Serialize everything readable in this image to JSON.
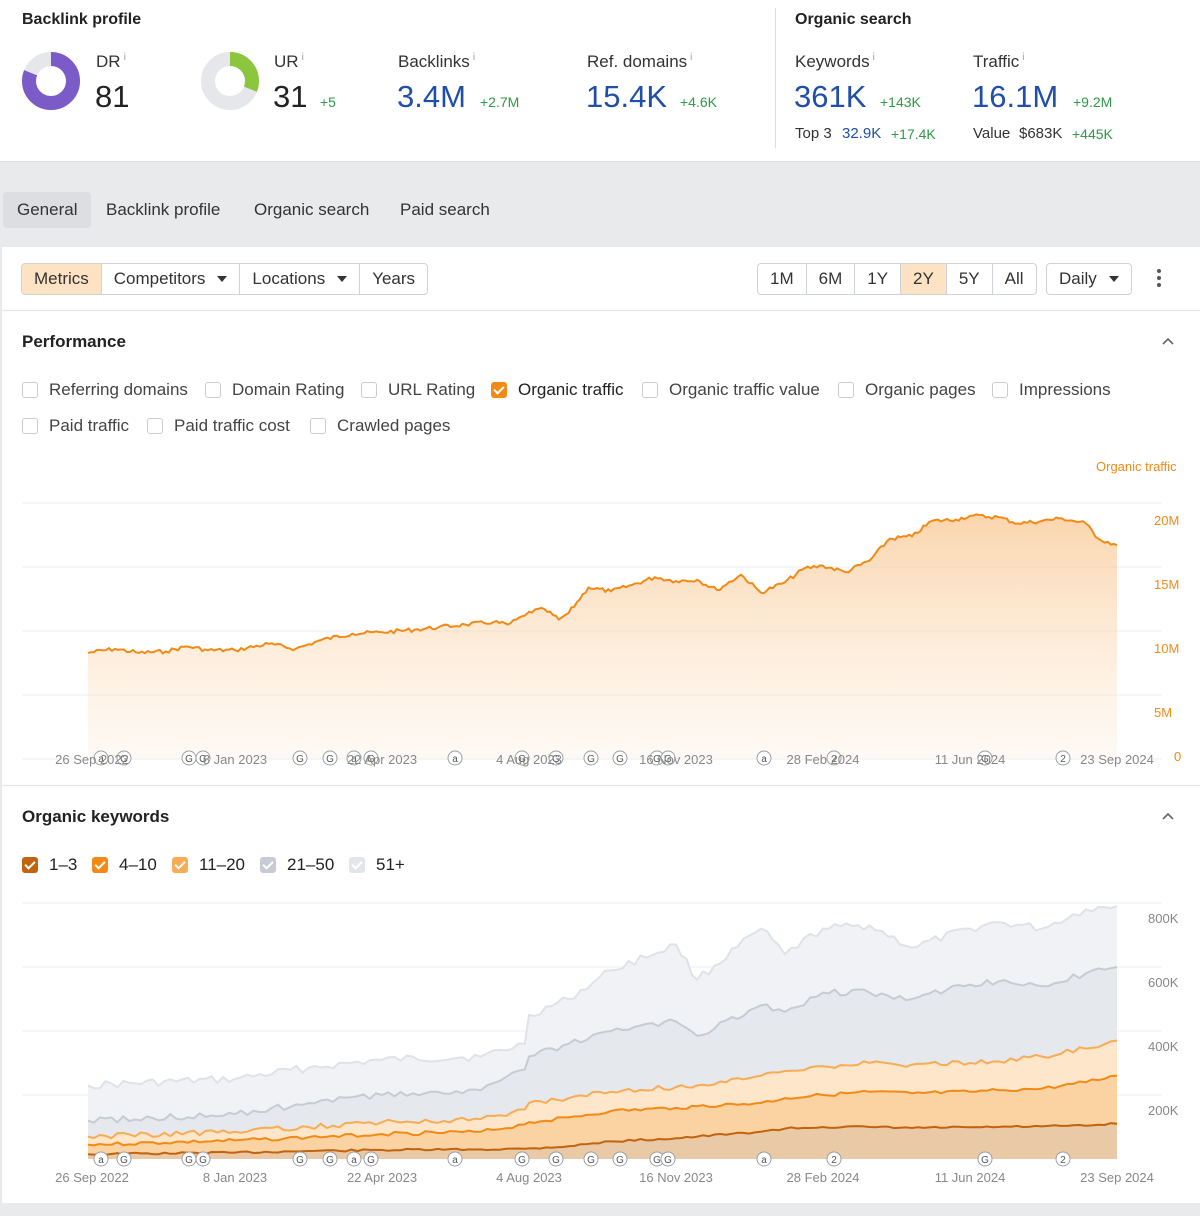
{
  "overview": {
    "backlink_title": "Backlink profile",
    "organic_title": "Organic search",
    "dr": {
      "label": "DR",
      "info": "i",
      "value": "81",
      "ring_fraction": 0.81,
      "color": "#7a5bc8"
    },
    "ur": {
      "label": "UR",
      "info": "i",
      "value": "31",
      "delta": "+5",
      "ring_fraction": 0.31,
      "color": "#8cc63f"
    },
    "backlinks": {
      "label": "Backlinks",
      "info": "i",
      "value": "3.4M",
      "delta": "+2.7M"
    },
    "ref_domains": {
      "label": "Ref. domains",
      "info": "i",
      "value": "15.4K",
      "delta": "+4.6K"
    },
    "keywords": {
      "label": "Keywords",
      "info": "i",
      "value": "361K",
      "delta": "+143K",
      "top3_label": "Top 3",
      "top3_value": "32.9K",
      "top3_delta": "+17.4K"
    },
    "traffic": {
      "label": "Traffic",
      "info": "i",
      "value": "16.1M",
      "delta": "+9.2M",
      "value_label": "Value",
      "value_value": "$683K",
      "value_delta": "+445K"
    }
  },
  "tabs": [
    {
      "label": "General",
      "active": true
    },
    {
      "label": "Backlink profile",
      "active": false
    },
    {
      "label": "Organic search",
      "active": false
    },
    {
      "label": "Paid search",
      "active": false
    }
  ],
  "toolbar": {
    "metrics": "Metrics",
    "competitors": "Competitors",
    "locations": "Locations",
    "years": "Years",
    "ranges": [
      "1M",
      "6M",
      "1Y",
      "2Y",
      "5Y",
      "All"
    ],
    "active_range": "2Y",
    "interval": "Daily"
  },
  "performance": {
    "title": "Performance",
    "metrics": [
      {
        "label": "Referring domains",
        "checked": false
      },
      {
        "label": "Domain Rating",
        "checked": false
      },
      {
        "label": "URL Rating",
        "checked": false
      },
      {
        "label": "Organic traffic",
        "checked": true
      },
      {
        "label": "Organic traffic value",
        "checked": false
      },
      {
        "label": "Organic pages",
        "checked": false
      },
      {
        "label": "Impressions",
        "checked": false
      },
      {
        "label": "Paid traffic",
        "checked": false
      },
      {
        "label": "Paid traffic cost",
        "checked": false
      },
      {
        "label": "Crawled pages",
        "checked": false
      }
    ]
  },
  "organic_keywords": {
    "title": "Organic keywords",
    "legend": [
      {
        "label": "1–3",
        "checked": true,
        "color": "#c2630f"
      },
      {
        "label": "4–10",
        "checked": true,
        "color": "#f28a15"
      },
      {
        "label": "11–20",
        "checked": true,
        "color": "#f7ac55"
      },
      {
        "label": "21–50",
        "checked": true,
        "color": "#c7ccd4"
      },
      {
        "label": "51+",
        "checked": true,
        "color": "#e2e5ea"
      }
    ]
  },
  "chart_data": [
    {
      "type": "area",
      "title": "",
      "ylabel": "Organic traffic",
      "x_tick_labels": [
        "26 Sep 2022",
        "8 Jan 2023",
        "22 Apr 2023",
        "4 Aug 2023",
        "16 Nov 2023",
        "28 Feb 2024",
        "11 Jun 2024",
        "23 Sep 2024"
      ],
      "y_tick_labels": [
        "0",
        "5M",
        "10M",
        "15M",
        "20M"
      ],
      "ylim": [
        0,
        20000000
      ],
      "color": "#f28a15",
      "grid": true,
      "series": [
        {
          "name": "Organic traffic",
          "x": [
            "26 Sep 2022",
            "15 Oct 2022",
            "1 Nov 2022",
            "20 Nov 2022",
            "5 Dec 2022",
            "20 Dec 2022",
            "8 Jan 2023",
            "1 Feb 2023",
            "20 Feb 2023",
            "10 Mar 2023",
            "1 Apr 2023",
            "22 Apr 2023",
            "15 May 2023",
            "1 Jun 2023",
            "20 Jun 2023",
            "10 Jul 2023",
            "20 Jul 2023",
            "1 Aug 2023",
            "4 Aug 2023",
            "15 Aug 2023",
            "25 Aug 2023",
            "1 Sep 2023",
            "15 Sep 2023",
            "1 Oct 2023",
            "16 Oct 2023",
            "1 Nov 2023",
            "16 Nov 2023",
            "1 Dec 2023",
            "15 Dec 2023",
            "1 Jan 2024",
            "15 Jan 2024",
            "1 Feb 2024",
            "15 Feb 2024",
            "28 Feb 2024",
            "15 Mar 2024",
            "1 Apr 2024",
            "15 Apr 2024",
            "1 May 2024",
            "15 May 2024",
            "1 Jun 2024",
            "11 Jun 2024",
            "1 Jul 2024",
            "15 Jul 2024",
            "1 Aug 2024",
            "15 Aug 2024",
            "1 Sep 2024",
            "10 Sep 2024",
            "23 Sep 2024"
          ],
          "y": [
            8300000,
            8600000,
            8300000,
            8400000,
            8800000,
            8500000,
            8500000,
            9000000,
            8600000,
            9300000,
            9800000,
            9900000,
            10100000,
            10300000,
            10500000,
            10700000,
            10500000,
            11200000,
            11500000,
            11700000,
            10900000,
            11400000,
            13400000,
            13100000,
            13600000,
            14200000,
            13900000,
            14000000,
            13200000,
            14400000,
            13000000,
            13800000,
            14900000,
            15100000,
            14600000,
            15500000,
            17200000,
            17400000,
            18600000,
            18700000,
            19000000,
            18900000,
            18400000,
            18600000,
            18800000,
            18400000,
            17200000,
            16700000
          ]
        }
      ]
    },
    {
      "type": "area",
      "title": "",
      "ylabel": "",
      "x_tick_labels": [
        "26 Sep 2022",
        "8 Jan 2023",
        "22 Apr 2023",
        "4 Aug 2023",
        "16 Nov 2023",
        "28 Feb 2024",
        "11 Jun 2024",
        "23 Sep 2024"
      ],
      "y_tick_labels": [
        "200K",
        "400K",
        "600K",
        "800K"
      ],
      "ylim": [
        0,
        800000
      ],
      "stacked": true,
      "grid": true,
      "x": [
        "26 Sep 2022",
        "8 Jan 2023",
        "1 Mar 2023",
        "22 Apr 2023",
        "1 Jul 2023",
        "1 Aug 2023",
        "4 Aug 2023",
        "1 Sep 2023",
        "1 Oct 2023",
        "16 Nov 2023",
        "1 Dec 2023",
        "15 Jan 2024",
        "1 Feb 2024",
        "28 Feb 2024",
        "1 Apr 2024",
        "1 May 2024",
        "11 Jun 2024",
        "1 Jul 2024",
        "1 Aug 2024",
        "1 Sep 2024",
        "23 Sep 2024"
      ],
      "series": [
        {
          "name": "1–3",
          "values": [
            15000,
            20000,
            25000,
            28000,
            30000,
            32000,
            33000,
            40000,
            55000,
            65000,
            70000,
            85000,
            95000,
            100000,
            100000,
            97000,
            99000,
            100000,
            102000,
            104000,
            110000
          ]
        },
        {
          "name": "4–10",
          "values": [
            45000,
            58000,
            68000,
            78000,
            85000,
            108000,
            115000,
            130000,
            150000,
            160000,
            165000,
            175000,
            190000,
            200000,
            210000,
            205000,
            210000,
            215000,
            220000,
            240000,
            260000
          ]
        },
        {
          "name": "11–20",
          "values": [
            70000,
            85000,
            100000,
            115000,
            125000,
            155000,
            175000,
            190000,
            210000,
            225000,
            230000,
            260000,
            275000,
            290000,
            300000,
            295000,
            300000,
            305000,
            320000,
            345000,
            370000
          ]
        },
        {
          "name": "21–50",
          "values": [
            120000,
            140000,
            175000,
            200000,
            215000,
            280000,
            320000,
            360000,
            400000,
            430000,
            385000,
            480000,
            460000,
            520000,
            520000,
            500000,
            545000,
            555000,
            540000,
            580000,
            600000
          ]
        },
        {
          "name": "51+",
          "values": [
            230000,
            250000,
            285000,
            310000,
            320000,
            360000,
            450000,
            500000,
            590000,
            670000,
            560000,
            720000,
            640000,
            720000,
            730000,
            660000,
            720000,
            740000,
            720000,
            780000,
            790000
          ]
        }
      ]
    }
  ],
  "annotation_badges": [
    [
      "a",
      "G",
      "G",
      "G",
      "G",
      "G",
      "a",
      "G",
      "a",
      "G",
      "G",
      "G",
      "G",
      "G",
      "G",
      "a",
      "2",
      "G",
      "2"
    ],
    [
      "a",
      "G",
      "G",
      "G",
      "G",
      "G",
      "a",
      "G",
      "a",
      "G",
      "G",
      "G",
      "G",
      "G",
      "G",
      "a",
      "2",
      "G",
      "2"
    ]
  ]
}
